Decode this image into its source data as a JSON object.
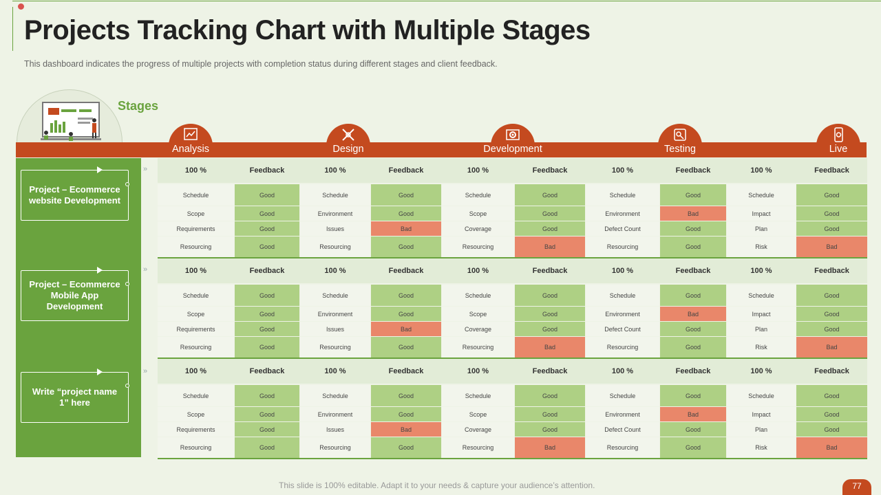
{
  "title": "Projects Tracking Chart with Multiple Stages",
  "subtitle": "This dashboard indicates the progress of multiple projects with completion status during different  stages and client feedback.",
  "stages_label": "Stages",
  "stages": [
    {
      "name": "Analysis",
      "icon": "analysis-chart-icon"
    },
    {
      "name": "Design",
      "icon": "design-tools-icon"
    },
    {
      "name": "Development",
      "icon": "development-gear-icon"
    },
    {
      "name": "Testing",
      "icon": "testing-icon"
    },
    {
      "name": "Live",
      "icon": "live-mobile-icon"
    }
  ],
  "projects": [
    {
      "name": "Project – Ecommerce website Development",
      "header": [
        "100 %",
        "Feedback",
        "100 %",
        "Feedback",
        "100 %",
        "Feedback",
        "100 %",
        "Feedback",
        "100 %",
        "Feedback"
      ],
      "rows": [
        [
          "Schedule",
          "Good",
          "Schedule",
          "Good",
          "Schedule",
          "Good",
          "Schedule",
          "Good",
          "Schedule",
          "Good"
        ],
        [
          "Scope",
          "Good",
          "Environment",
          "Good",
          "Scope",
          "Good",
          "Environment",
          "Bad",
          "Impact",
          "Good"
        ],
        [
          "Requirements",
          "Good",
          "Issues",
          "Bad",
          "Coverage",
          "Good",
          "Defect Count",
          "Good",
          "Plan",
          "Good"
        ],
        [
          "Resourcing",
          "Good",
          "Resourcing",
          "Good",
          "Resourcing",
          "Bad",
          "Resourcing",
          "Good",
          "Risk",
          "Bad"
        ]
      ]
    },
    {
      "name": "Project – Ecommerce Mobile App Development",
      "header": [
        "100 %",
        "Feedback",
        "100 %",
        "Feedback",
        "100 %",
        "Feedback",
        "100 %",
        "Feedback",
        "100 %",
        "Feedback"
      ],
      "rows": [
        [
          "Schedule",
          "Good",
          "Schedule",
          "Good",
          "Schedule",
          "Good",
          "Schedule",
          "Good",
          "Schedule",
          "Good"
        ],
        [
          "Scope",
          "Good",
          "Environment",
          "Good",
          "Scope",
          "Good",
          "Environment",
          "Bad",
          "Impact",
          "Good"
        ],
        [
          "Requirements",
          "Good",
          "Issues",
          "Bad",
          "Coverage",
          "Good",
          "Defect Count",
          "Good",
          "Plan",
          "Good"
        ],
        [
          "Resourcing",
          "Good",
          "Resourcing",
          "Good",
          "Resourcing",
          "Bad",
          "Resourcing",
          "Good",
          "Risk",
          "Bad"
        ]
      ]
    },
    {
      "name": "Write “project name 1” here",
      "header": [
        "100 %",
        "Feedback",
        "100 %",
        "Feedback",
        "100 %",
        "Feedback",
        "100 %",
        "Feedback",
        "100 %",
        "Feedback"
      ],
      "rows": [
        [
          "Schedule",
          "Good",
          "Schedule",
          "Good",
          "Schedule",
          "Good",
          "Schedule",
          "Good",
          "Schedule",
          "Good"
        ],
        [
          "Scope",
          "Good",
          "Environment",
          "Good",
          "Scope",
          "Good",
          "Environment",
          "Bad",
          "Impact",
          "Good"
        ],
        [
          "Requirements",
          "Good",
          "Issues",
          "Bad",
          "Coverage",
          "Good",
          "Defect Count",
          "Good",
          "Plan",
          "Good"
        ],
        [
          "Resourcing",
          "Good",
          "Resourcing",
          "Good",
          "Resourcing",
          "Bad",
          "Resourcing",
          "Good",
          "Risk",
          "Bad"
        ]
      ]
    }
  ],
  "colors": {
    "accent": "#c44a1f",
    "green": "#6aa33e",
    "good": "#aed084",
    "bad": "#e9876a"
  },
  "footer": "This slide is 100% editable. Adapt it to your needs & capture your audience’s attention.",
  "page_number": "77"
}
